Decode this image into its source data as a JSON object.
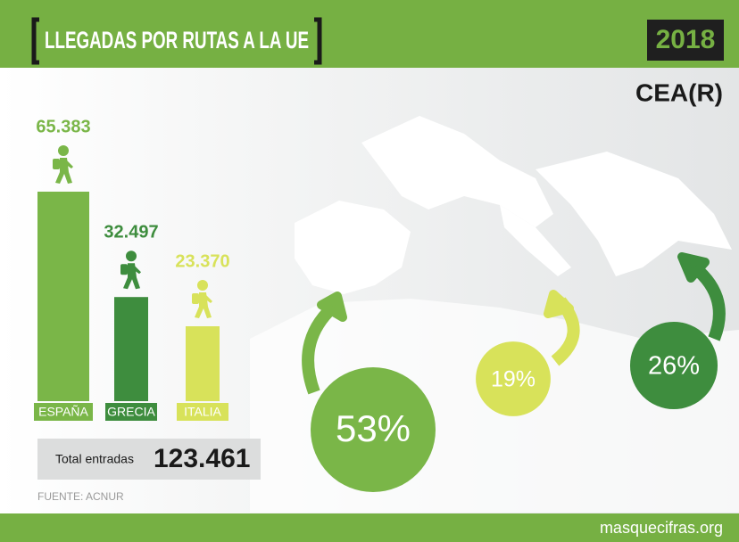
{
  "header": {
    "title": "LLEGADAS POR RUTAS A LA UE",
    "year": "2018",
    "logo": "CEA(R)"
  },
  "chart_data": {
    "type": "bar",
    "categories": [
      "ESPAÑA",
      "GRECIA",
      "ITALIA"
    ],
    "values": [
      65383,
      32497,
      23370
    ],
    "value_labels": [
      "65.383",
      "32.497",
      "23.370"
    ],
    "colors": [
      "#7ab648",
      "#3e8d3e",
      "#d8e25a"
    ]
  },
  "routes": [
    {
      "value": 53,
      "label": "53%",
      "color": "#7ab648"
    },
    {
      "value": 19,
      "label": "19%",
      "color": "#d8e25a"
    },
    {
      "value": 26,
      "label": "26%",
      "color": "#3e8d3e"
    }
  ],
  "total": {
    "label": "Total entradas",
    "value": "123.461"
  },
  "source": "FUENTE: ACNUR",
  "footer": "masquecifras.org"
}
